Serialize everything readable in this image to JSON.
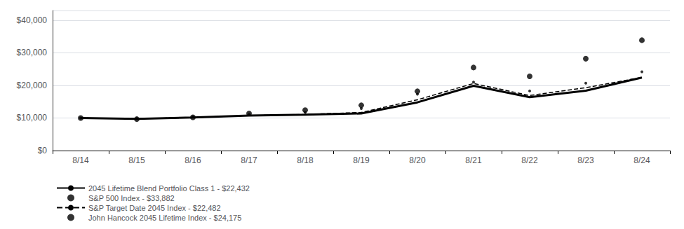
{
  "chart_data": {
    "type": "line",
    "categories": [
      "8/14",
      "8/15",
      "8/16",
      "8/17",
      "8/18",
      "8/19",
      "8/20",
      "8/21",
      "8/22",
      "8/23",
      "8/24"
    ],
    "series": [
      {
        "name": "2045 Lifetime Blend Portfolio Class 1 - $22,432",
        "type": "line",
        "line_style": "solid",
        "color": "#000000",
        "values": [
          10000,
          9750,
          10150,
          10750,
          11000,
          11400,
          14800,
          19900,
          16400,
          18400,
          22432
        ]
      },
      {
        "name": "S&P 500 Index - $33,882",
        "type": "scatter",
        "marker": "circle",
        "color": "#000000",
        "values": [
          10000,
          9650,
          10200,
          11400,
          12400,
          13900,
          18200,
          25500,
          22800,
          28200,
          33882
        ]
      },
      {
        "name": "S&P Target Date 2045 Index - $22,482",
        "type": "line",
        "line_style": "dashed",
        "color": "#000000",
        "values": [
          10000,
          9800,
          10150,
          10750,
          11100,
          11700,
          15600,
          20600,
          16900,
          19300,
          22482
        ]
      },
      {
        "name": "John Hancock 2045 Lifetime Index - $24,175",
        "type": "scatter",
        "marker": "circle",
        "color": "#000000",
        "values": [
          10000,
          9850,
          10300,
          11100,
          11700,
          12900,
          17300,
          21000,
          18300,
          20700,
          24175
        ]
      }
    ],
    "ylim": [
      0,
      43000
    ],
    "yticks": [
      {
        "value": 0,
        "label": "$0"
      },
      {
        "value": 10000,
        "label": "$10,000"
      },
      {
        "value": 20000,
        "label": "$20,000"
      },
      {
        "value": 30000,
        "label": "$30,000"
      },
      {
        "value": 40000,
        "label": "$40,000"
      }
    ],
    "grid": true,
    "legend": "lower left"
  }
}
